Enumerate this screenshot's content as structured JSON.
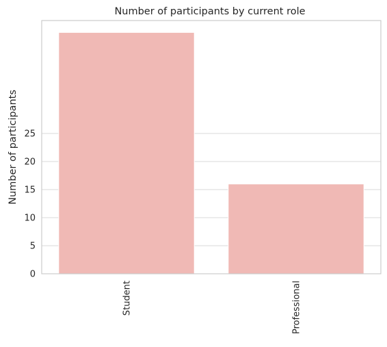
{
  "chart_data": {
    "type": "bar",
    "title": "Number of participants by current role",
    "xlabel": "",
    "ylabel": "Number of participants",
    "categories": [
      "Student",
      "Professional"
    ],
    "values": [
      43,
      16
    ],
    "yticks": [
      0,
      5,
      10,
      15,
      20,
      25
    ],
    "ylim": [
      0,
      45
    ],
    "grid": true,
    "bar_color": "#f0b9b5",
    "x_tick_rotation": 90
  }
}
